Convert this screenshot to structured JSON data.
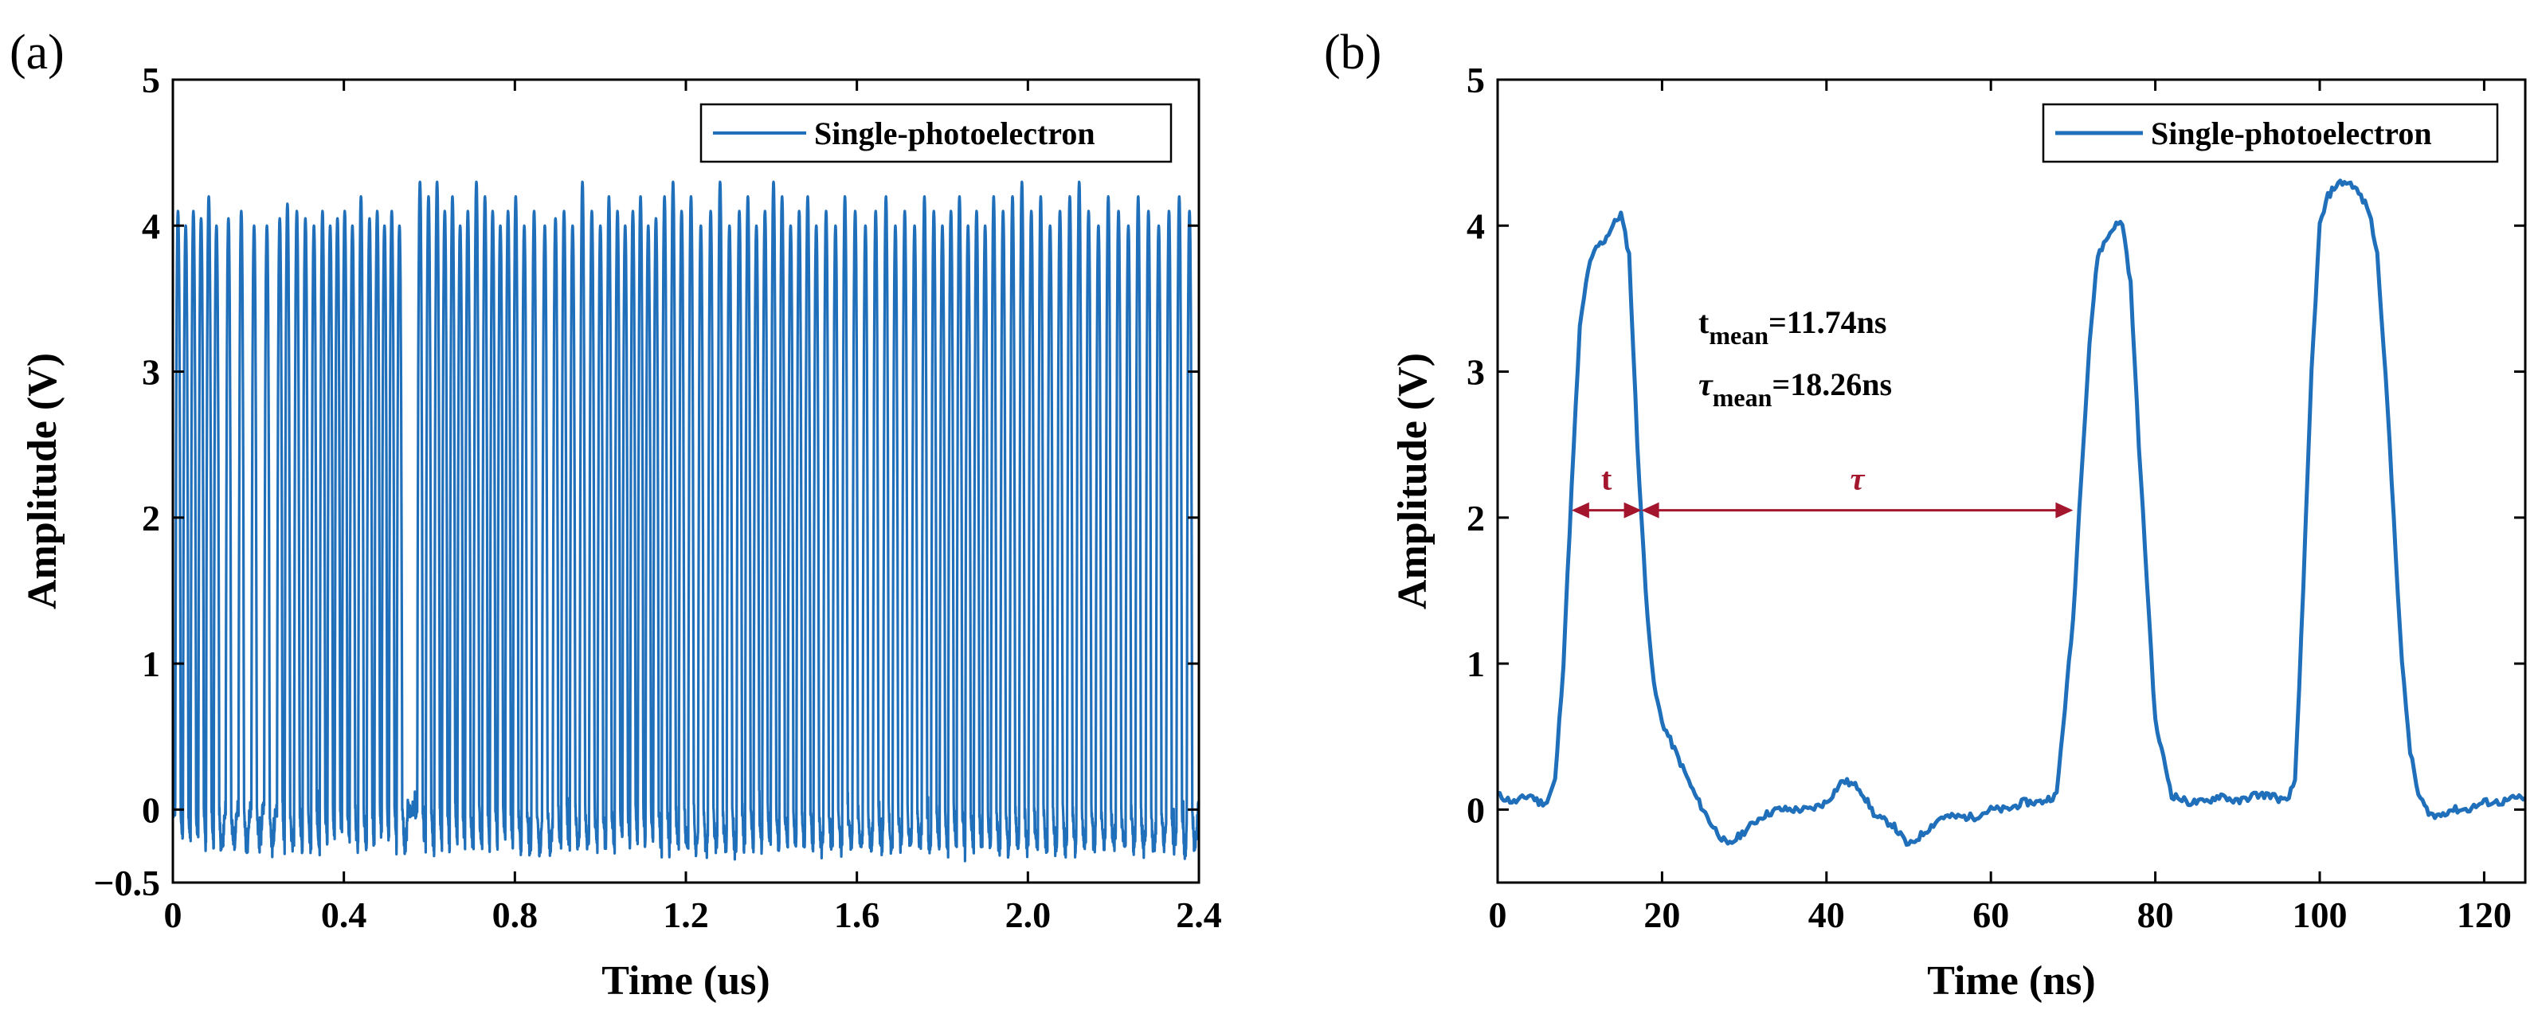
{
  "chart_data": [
    {
      "panel_label": "(a)",
      "type": "line",
      "xlabel": "Time (us)",
      "ylabel": "Amplitude (V)",
      "xlim": [
        0,
        2.4
      ],
      "ylim": [
        -0.5,
        5
      ],
      "xticks": [
        0,
        0.4,
        0.8,
        1.2,
        1.6,
        2.0,
        2.4
      ],
      "xtick_labels": [
        "0",
        "0.4",
        "0.8",
        "1.2",
        "1.6",
        "2.0",
        "2.4"
      ],
      "yticks": [
        -0.5,
        0,
        1,
        2,
        3,
        4,
        5
      ],
      "ytick_labels": [
        "−0.5",
        "0",
        "1",
        "2",
        "3",
        "4",
        "5"
      ],
      "legend": "Single-photoelectron",
      "legend_position": "top-right",
      "series_color": "#1f6fba",
      "series": [
        {
          "name": "Single-photoelectron",
          "pulse_times": [
            0.012,
            0.03,
            0.048,
            0.066,
            0.084,
            0.102,
            0.13,
            0.16,
            0.19,
            0.22,
            0.25,
            0.268,
            0.29,
            0.31,
            0.33,
            0.35,
            0.368,
            0.385,
            0.402,
            0.42,
            0.44,
            0.46,
            0.478,
            0.495,
            0.512,
            0.53,
            0.578,
            0.598,
            0.618,
            0.636,
            0.654,
            0.672,
            0.69,
            0.71,
            0.73,
            0.748,
            0.766,
            0.784,
            0.802,
            0.822,
            0.845,
            0.87,
            0.895,
            0.915,
            0.935,
            0.958,
            0.98,
            1.0,
            1.02,
            1.04,
            1.058,
            1.076,
            1.094,
            1.112,
            1.13,
            1.15,
            1.17,
            1.19,
            1.212,
            1.235,
            1.258,
            1.28,
            1.302,
            1.325,
            1.345,
            1.365,
            1.385,
            1.405,
            1.425,
            1.445,
            1.465,
            1.485,
            1.505,
            1.528,
            1.55,
            1.572,
            1.596,
            1.62,
            1.644,
            1.668,
            1.69,
            1.712,
            1.735,
            1.758,
            1.78,
            1.8,
            1.82,
            1.84,
            1.86,
            1.88,
            1.9,
            1.92,
            1.942,
            1.964,
            1.986,
            2.008,
            2.03,
            2.052,
            2.075,
            2.098,
            2.12,
            2.142,
            2.165,
            2.188,
            2.212,
            2.235,
            2.258,
            2.282,
            2.306,
            2.33,
            2.354,
            2.378
          ],
          "pulse_peaks": [
            4.1,
            4.0,
            4.1,
            4.05,
            4.2,
            4.0,
            4.05,
            4.1,
            4.0,
            4.0,
            4.05,
            4.15,
            4.1,
            4.05,
            4.0,
            4.1,
            4.0,
            4.05,
            4.1,
            4.0,
            4.2,
            4.05,
            4.1,
            4.0,
            4.1,
            4.0,
            4.3,
            4.2,
            4.3,
            4.1,
            4.2,
            4.0,
            4.1,
            4.3,
            4.2,
            4.1,
            4.0,
            4.1,
            4.2,
            4.0,
            4.1,
            4.0,
            4.05,
            4.1,
            4.0,
            4.3,
            4.1,
            4.0,
            4.2,
            4.1,
            4.0,
            4.1,
            4.2,
            4.0,
            4.05,
            4.2,
            4.3,
            4.1,
            4.2,
            4.0,
            4.1,
            4.3,
            4.0,
            4.1,
            4.2,
            4.0,
            4.1,
            4.3,
            4.2,
            4.0,
            4.1,
            4.2,
            4.0,
            4.1,
            4.0,
            4.2,
            4.1,
            4.0,
            4.1,
            4.2,
            4.0,
            4.1,
            4.0,
            4.2,
            4.1,
            4.0,
            4.1,
            4.2,
            4.0,
            4.1,
            4.0,
            4.2,
            4.1,
            4.2,
            4.3,
            4.1,
            4.2,
            4.0,
            4.1,
            4.2,
            4.3,
            4.1,
            4.0,
            4.2,
            4.1,
            4.0,
            4.2,
            4.1,
            4.0,
            4.1,
            4.2,
            4.1
          ],
          "pulse_width_us": 0.0117,
          "baseline": 0.0,
          "noise_range": [
            -0.3,
            0.2
          ]
        }
      ]
    },
    {
      "panel_label": "(b)",
      "type": "line",
      "xlabel": "Time (ns)",
      "ylabel": "Amplitude (V)",
      "xlim": [
        0,
        125
      ],
      "ylim": [
        -0.5,
        5
      ],
      "xticks": [
        0,
        20,
        40,
        60,
        80,
        100,
        120
      ],
      "xtick_labels": [
        "0",
        "20",
        "40",
        "60",
        "80",
        "100",
        "120"
      ],
      "yticks": [
        0,
        1,
        2,
        3,
        4,
        5
      ],
      "ytick_labels": [
        "0",
        "1",
        "2",
        "3",
        "4",
        "5"
      ],
      "legend": "Single-photoelectron",
      "legend_position": "top-right",
      "series_color": "#1f6fba",
      "series": [
        {
          "name": "Single-photoelectron",
          "x": [
            0,
            2,
            4,
            5,
            6,
            7,
            8,
            9,
            10,
            11,
            12,
            13,
            14,
            15,
            16,
            17,
            18,
            19,
            20,
            22,
            24,
            26,
            28,
            30,
            32,
            34,
            36,
            38,
            40,
            42,
            44,
            46,
            48,
            50,
            52,
            54,
            56,
            58,
            60,
            62,
            64,
            66,
            68,
            70,
            71,
            72,
            73,
            74,
            75,
            76,
            77,
            78,
            80,
            82,
            84,
            86,
            88,
            90,
            92,
            94,
            96,
            97,
            98,
            99,
            100,
            101,
            102,
            103,
            104,
            105,
            106,
            107,
            108,
            109,
            110,
            111,
            112,
            113,
            114,
            116,
            118,
            120,
            122,
            124,
            125
          ],
          "y": [
            0.1,
            0.05,
            0.1,
            0.05,
            0.05,
            0.2,
            1.0,
            2.2,
            3.3,
            3.7,
            3.85,
            3.9,
            4.0,
            4.08,
            3.8,
            2.5,
            1.5,
            0.85,
            0.6,
            0.35,
            0.1,
            -0.1,
            -0.25,
            -0.15,
            -0.05,
            0.0,
            0.0,
            0.0,
            0.05,
            0.2,
            0.15,
            -0.05,
            -0.1,
            -0.25,
            -0.15,
            -0.05,
            -0.05,
            -0.05,
            0.0,
            0.0,
            0.05,
            0.05,
            0.1,
            1.3,
            2.3,
            3.2,
            3.8,
            3.9,
            4.0,
            4.02,
            3.6,
            2.5,
            0.6,
            0.1,
            0.05,
            0.05,
            0.1,
            0.05,
            0.1,
            0.1,
            0.05,
            0.2,
            1.5,
            3.0,
            4.0,
            4.2,
            4.28,
            4.3,
            4.28,
            4.2,
            4.1,
            3.8,
            3.0,
            2.0,
            1.0,
            0.4,
            0.1,
            0.0,
            -0.05,
            0.0,
            0.0,
            0.05,
            0.05,
            0.08,
            0.08
          ]
        }
      ],
      "annotations": {
        "t_mean_base": "t",
        "t_mean_sub": "mean",
        "t_mean_value": "=11.74ns",
        "tau_mean_base": "τ",
        "tau_mean_sub": "mean",
        "tau_mean_value": "=18.26ns",
        "t_label": "t",
        "tau_label": "τ",
        "t_arrow": [
          9.0,
          17.5
        ],
        "tau_arrow": [
          17.5,
          70.0
        ],
        "arrow_y": 2.05,
        "arrow_color": "#a3162e"
      }
    }
  ]
}
